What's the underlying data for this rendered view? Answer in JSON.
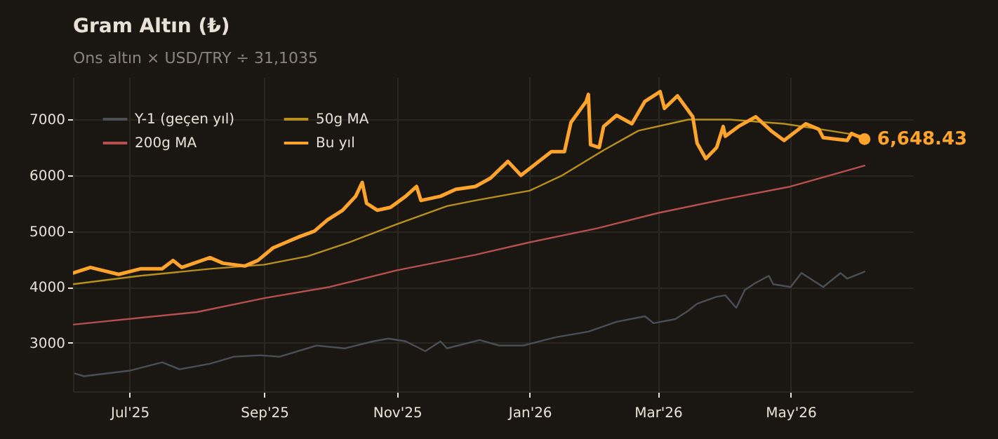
{
  "chart_data": {
    "type": "line",
    "title": "Gram Altın (₺)",
    "subtitle": "Ons altın × USD/TRY ÷ 31,1035",
    "xlim": [
      "2025-06-05",
      "2026-06-26"
    ],
    "xticks": [
      {
        "value": "2025-07-01",
        "label": "Jul'25"
      },
      {
        "value": "2025-09-01",
        "label": "Sep'25"
      },
      {
        "value": "2025-11-01",
        "label": "Nov'25"
      },
      {
        "value": "2026-01-01",
        "label": "Jan'26"
      },
      {
        "value": "2026-03-01",
        "label": "Mar'26"
      },
      {
        "value": "2026-05-01",
        "label": "May'26"
      }
    ],
    "ylim": [
      2130,
      7760
    ],
    "yticks": [
      3000,
      4000,
      5000,
      6000,
      7000
    ],
    "grid": true,
    "legend": "top left",
    "line_style": "solid",
    "marker": "none",
    "series": [
      {
        "name": "Y-1 (geçen yıl)",
        "color": "#4a4f57",
        "x": [
          "2025-06-06",
          "2025-06-10",
          "2025-07-01",
          "2025-07-16",
          "2025-07-24",
          "2025-08-07",
          "2025-08-18",
          "2025-08-30",
          "2025-09-08",
          "2025-09-25",
          "2025-10-08",
          "2025-10-21",
          "2025-10-28",
          "2025-11-05",
          "2025-11-14",
          "2025-11-21",
          "2025-11-24",
          "2025-12-09",
          "2025-12-18",
          "2025-12-29",
          "2026-01-13",
          "2026-01-28",
          "2026-02-10",
          "2026-02-23",
          "2026-02-27",
          "2026-03-09",
          "2026-03-15",
          "2026-03-19",
          "2026-03-28",
          "2026-04-01",
          "2026-04-06",
          "2026-04-10",
          "2026-04-15",
          "2026-04-21",
          "2026-04-23",
          "2026-05-01",
          "2026-05-06",
          "2026-05-16",
          "2026-05-24",
          "2026-05-27",
          "2026-06-04"
        ],
        "values": [
          2450,
          2400,
          2500,
          2650,
          2525,
          2625,
          2750,
          2775,
          2750,
          2950,
          2900,
          3025,
          3075,
          3025,
          2850,
          3025,
          2900,
          3050,
          2950,
          2950,
          3100,
          3200,
          3375,
          3475,
          3350,
          3425,
          3575,
          3700,
          3825,
          3850,
          3625,
          3950,
          4075,
          4200,
          4050,
          4000,
          4250,
          4000,
          4250,
          4150,
          4275
        ]
      },
      {
        "name": "50g MA",
        "color": "#b8901c",
        "x": [
          "2025-06-05",
          "2025-07-06",
          "2025-08-07",
          "2025-09-01",
          "2025-09-21",
          "2025-10-10",
          "2025-11-01",
          "2025-11-24",
          "2025-12-07",
          "2026-01-01",
          "2026-01-16",
          "2026-02-04",
          "2026-02-20",
          "2026-03-15",
          "2026-04-03",
          "2026-04-28",
          "2026-05-19",
          "2026-06-04"
        ],
        "values": [
          4050,
          4200,
          4325,
          4400,
          4550,
          4800,
          5125,
          5450,
          5550,
          5725,
          6000,
          6450,
          6800,
          7000,
          7000,
          6925,
          6800,
          6700
        ]
      },
      {
        "name": "200g MA",
        "color": "#b5504e",
        "x": [
          "2025-06-05",
          "2025-08-01",
          "2025-09-01",
          "2025-10-01",
          "2025-11-01",
          "2025-12-07",
          "2026-01-01",
          "2026-02-01",
          "2026-03-01",
          "2026-04-01",
          "2026-05-01",
          "2026-06-04"
        ],
        "values": [
          3325,
          3550,
          3800,
          4000,
          4300,
          4575,
          4800,
          5050,
          5325,
          5575,
          5800,
          6175
        ]
      },
      {
        "name": "Bu yıl",
        "color": "#ffa42b",
        "x": [
          "2025-06-05",
          "2025-06-13",
          "2025-06-26",
          "2025-07-06",
          "2025-07-16",
          "2025-07-21",
          "2025-07-25",
          "2025-08-07",
          "2025-08-13",
          "2025-08-23",
          "2025-08-29",
          "2025-09-05",
          "2025-09-11",
          "2025-09-17",
          "2025-09-24",
          "2025-09-30",
          "2025-10-07",
          "2025-10-13",
          "2025-10-16",
          "2025-10-18",
          "2025-10-23",
          "2025-10-29",
          "2025-11-05",
          "2025-11-10",
          "2025-11-12",
          "2025-11-21",
          "2025-11-28",
          "2025-12-07",
          "2025-12-14",
          "2025-12-22",
          "2025-12-28",
          "2026-01-11",
          "2026-01-17",
          "2026-01-20",
          "2026-01-27",
          "2026-01-28",
          "2026-01-29",
          "2026-02-02",
          "2026-02-04",
          "2026-02-10",
          "2026-02-17",
          "2026-02-23",
          "2026-03-02",
          "2026-03-04",
          "2026-03-10",
          "2026-03-17",
          "2026-03-19",
          "2026-03-23",
          "2026-03-28",
          "2026-03-31",
          "2026-04-01",
          "2026-04-07",
          "2026-04-15",
          "2026-04-22",
          "2026-04-28",
          "2026-05-08",
          "2026-05-14",
          "2026-05-16",
          "2026-05-27",
          "2026-05-29",
          "2026-06-04"
        ],
        "values": [
          4250,
          4350,
          4225,
          4325,
          4325,
          4475,
          4350,
          4525,
          4425,
          4375,
          4475,
          4700,
          4800,
          4900,
          5000,
          5200,
          5375,
          5625,
          5875,
          5500,
          5375,
          5425,
          5625,
          5800,
          5550,
          5625,
          5750,
          5800,
          5950,
          6250,
          6000,
          6425,
          6425,
          6950,
          7325,
          7450,
          6550,
          6500,
          6875,
          7075,
          6925,
          7325,
          7500,
          7200,
          7425,
          7050,
          6575,
          6300,
          6500,
          6875,
          6700,
          6875,
          7050,
          6800,
          6625,
          6925,
          6825,
          6675,
          6625,
          6750,
          6648.43
        ]
      }
    ],
    "annotations": [
      {
        "text": "6,648.43",
        "x": "2026-06-04",
        "y": 6648.43
      }
    ]
  }
}
